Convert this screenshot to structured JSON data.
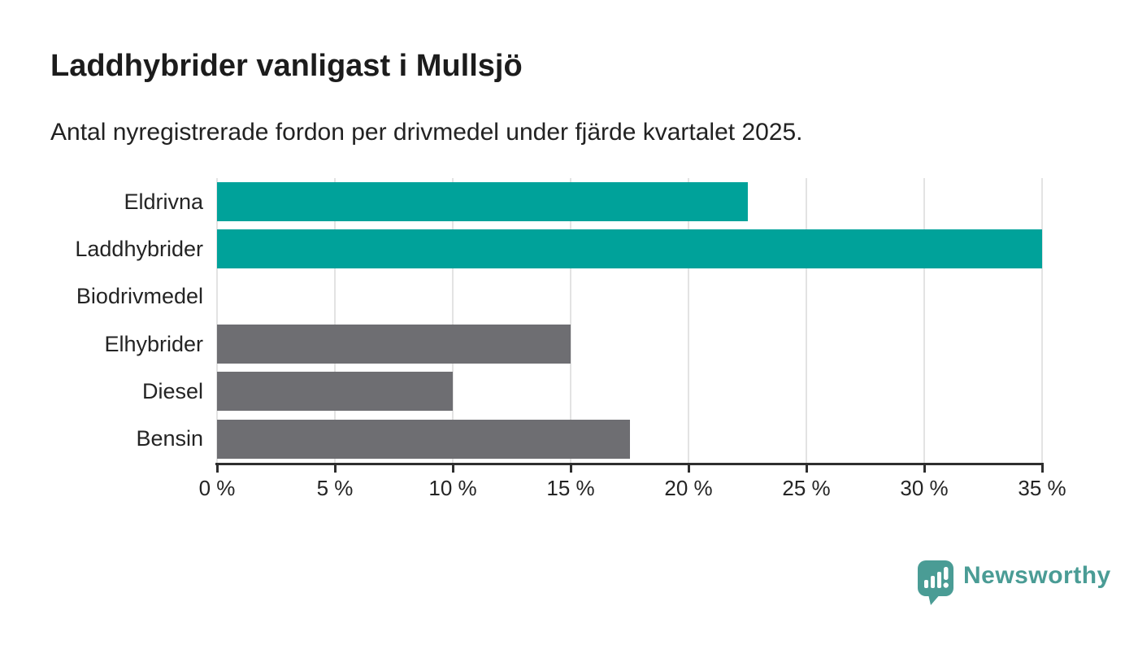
{
  "header": {
    "title": "Laddhybrider vanligast i Mullsjö",
    "subtitle": "Antal nyregistrerade fordon per drivmedel under fjärde kvartalet 2025."
  },
  "chart_data": {
    "type": "bar",
    "orientation": "horizontal",
    "title": "Laddhybrider vanligast i Mullsjö",
    "subtitle": "Antal nyregistrerade fordon per drivmedel under fjärde kvartalet 2025.",
    "categories": [
      "Eldrivna",
      "Laddhybrider",
      "Biodrivmedel",
      "Elhybrider",
      "Diesel",
      "Bensin"
    ],
    "values": [
      22.5,
      35,
      0,
      15,
      10,
      17.5
    ],
    "unit": "%",
    "xlabel": "",
    "ylabel": "",
    "xlim": [
      0,
      35
    ],
    "xticks": [
      0,
      5,
      10,
      15,
      20,
      25,
      30,
      35
    ],
    "xtick_labels": [
      "0 %",
      "5 %",
      "10 %",
      "15 %",
      "20 %",
      "25 %",
      "30 %",
      "35 %"
    ],
    "grid": true,
    "legend": "none",
    "bar_colors": [
      "#00a29a",
      "#00a29a",
      "#6e6e72",
      "#6e6e72",
      "#6e6e72",
      "#6e6e72"
    ],
    "highlight_color": "#00a29a",
    "default_color": "#6e6e72"
  },
  "footer": {
    "brand": "Newsworthy",
    "brand_color": "#4a9c95"
  }
}
